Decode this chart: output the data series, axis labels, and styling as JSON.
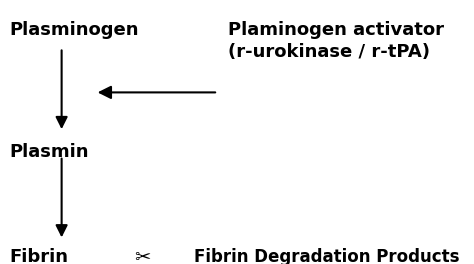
{
  "bg_color": "#ffffff",
  "text_plasminogen": "Plasminogen",
  "text_plasmin": "Plasmin",
  "text_fibrin": "Fibrin",
  "text_activator_line1": "Plaminogen activator",
  "text_activator_line2": "(r-urokinase / r-tPA)",
  "text_fdp": "Fibrin Degradation Products",
  "text_color": "#000000",
  "fontsize_main": 13,
  "fontsize_fdp": 12,
  "fontsize_scissors": 14,
  "arrow_color": "#000000",
  "scissors_char": "✂",
  "fig_width": 4.74,
  "fig_height": 2.64,
  "dpi": 100
}
